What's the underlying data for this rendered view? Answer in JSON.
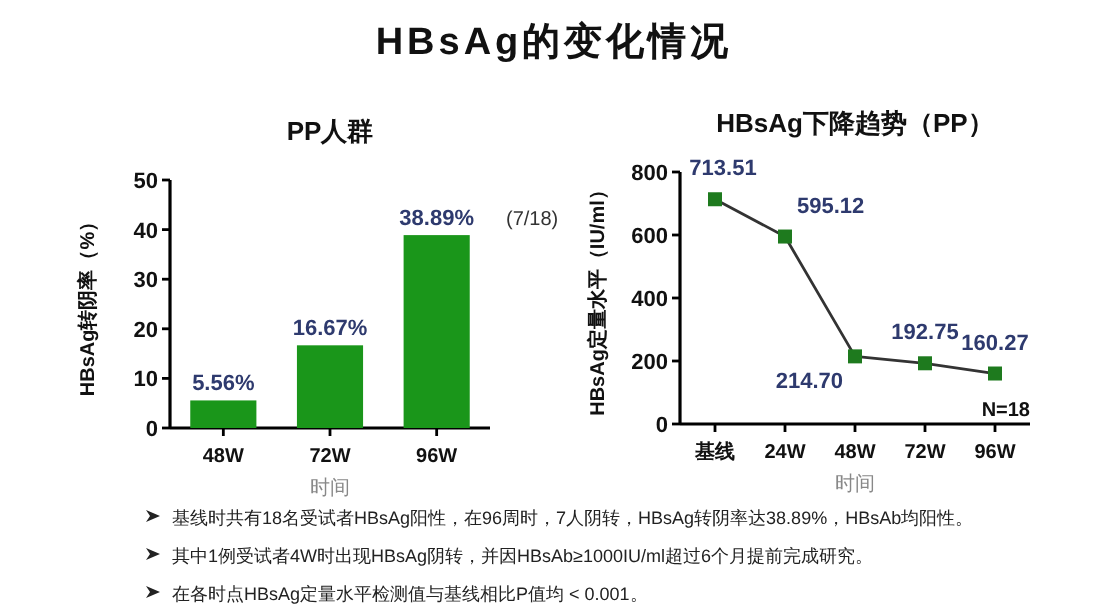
{
  "chart_data": [
    {
      "type": "bar",
      "title": "PP人群",
      "xlabel": "时间",
      "ylabel": "HBsAg转阴率（%）",
      "categories": [
        "48W",
        "72W",
        "96W"
      ],
      "values": [
        5.56,
        16.67,
        38.89
      ],
      "color": "#1a961a",
      "value_labels": [
        "5.56%",
        "16.67%",
        "38.89%"
      ],
      "annotations": [
        "(7/18)"
      ],
      "ylim": [
        0,
        50
      ],
      "yticks": [
        0,
        10,
        20,
        30,
        40,
        50
      ]
    },
    {
      "type": "line",
      "title": "HBsAg下降趋势（PP）",
      "xlabel": "时间",
      "ylabel": "HBsAg定量水平（IU/ml）",
      "categories": [
        "基线",
        "24W",
        "48W",
        "72W",
        "96W"
      ],
      "values": [
        713.51,
        595.12,
        214.7,
        192.75,
        160.27
      ],
      "color": "#333333",
      "value_labels": [
        "713.51",
        "595.12",
        "214.70",
        "192.75",
        "160.27"
      ],
      "annotations": [
        "N=18"
      ],
      "marker": "square",
      "ylim": [
        0,
        800
      ],
      "yticks": [
        0,
        200,
        400,
        600,
        800
      ]
    },
    {
      "type": "other",
      "title": "HBsAg的变化情况",
      "annotations": [
        "基线时共有18名受试者HBsAg阳性，在96周时，7人阴转，HBsAg转阴率达38.89%，HBsAb均阳性。",
        "其中1例受试者4W时出现HBsAg阴转，并因HBsAb≥1000IU/ml超过6个月提前完成研究。",
        "在各时点HBsAg定量水平检测值与基线相比P值均 < 0.001。"
      ]
    }
  ]
}
